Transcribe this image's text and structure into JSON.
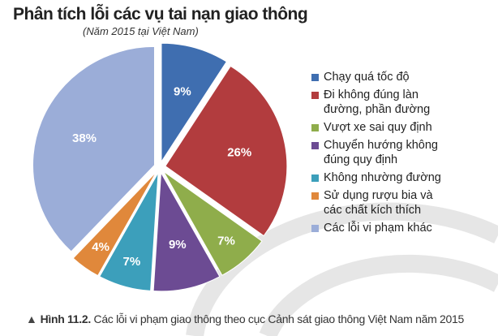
{
  "chart_data": {
    "type": "pie",
    "title": "Phân tích lỗi các vụ tai nạn giao thông",
    "subtitle": "(Năm 2015 tại Việt Nam)",
    "categories": [
      "Chạy quá tốc độ",
      "Đi không đúng làn đường, phần đường",
      "Vượt xe sai quy định",
      "Chuyển hướng không đúng quy định",
      "Không nhường đường",
      "Sử dụng rượu bia và các chất kích thích",
      "Các lỗi vi phạm khác"
    ],
    "values": [
      9,
      26,
      7,
      9,
      7,
      4,
      38
    ],
    "labels": [
      "9%",
      "26%",
      "7%",
      "9%",
      "7%",
      "4%",
      "38%"
    ],
    "colors": [
      "#3f6eb0",
      "#b23c3e",
      "#8fad4b",
      "#6c4b93",
      "#3c9fbb",
      "#e0883b",
      "#9badd8"
    ],
    "exploded": true,
    "legend_position": "right"
  },
  "caption": {
    "icon": "triangle-up-icon",
    "label": "Hình 11.2.",
    "text": " Các lỗi vi phạm giao thông theo cục Cảnh sát giao thông Việt Nam năm 2015"
  }
}
